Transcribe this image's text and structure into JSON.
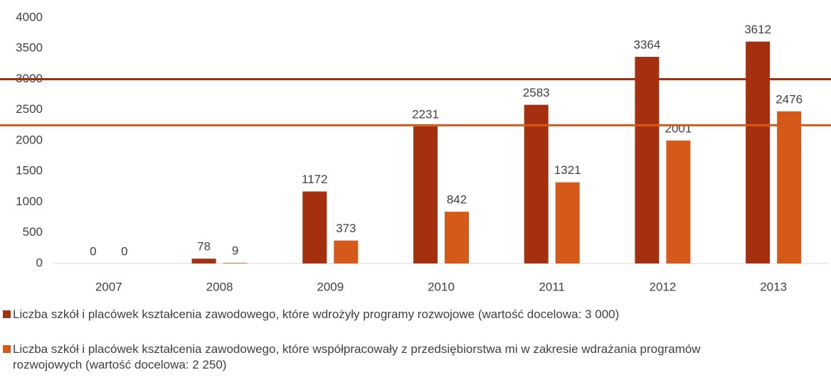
{
  "chart_data": {
    "type": "bar",
    "categories": [
      "2007",
      "2008",
      "2009",
      "2010",
      "2011",
      "2012",
      "2013"
    ],
    "series": [
      {
        "name": "Liczba szkół i placówek kształcenia zawodowego, które wdrożyły programy rozwojowe (wartość docelowa: 3 000)",
        "color": "#a5300f",
        "values": [
          0,
          78,
          1172,
          2231,
          2583,
          3364,
          3612
        ]
      },
      {
        "name": "Liczba szkół i placówek kształcenia zawodowego, które współpracowały z przedsiębiorstwa mi w zakresie wdrażania programów rozwojowych (wartość docelowa: 2 250)",
        "color": "#d55a1a",
        "values": [
          0,
          9,
          373,
          842,
          1321,
          2001,
          2476
        ]
      }
    ],
    "reference_lines": [
      {
        "value": 3000,
        "color": "#a5300f"
      },
      {
        "value": 2250,
        "color": "#d55a1a"
      }
    ],
    "ylim": [
      0,
      4000
    ],
    "yticks": [
      0,
      500,
      1000,
      1500,
      2000,
      2500,
      3000,
      3500,
      4000
    ],
    "grid": false
  }
}
